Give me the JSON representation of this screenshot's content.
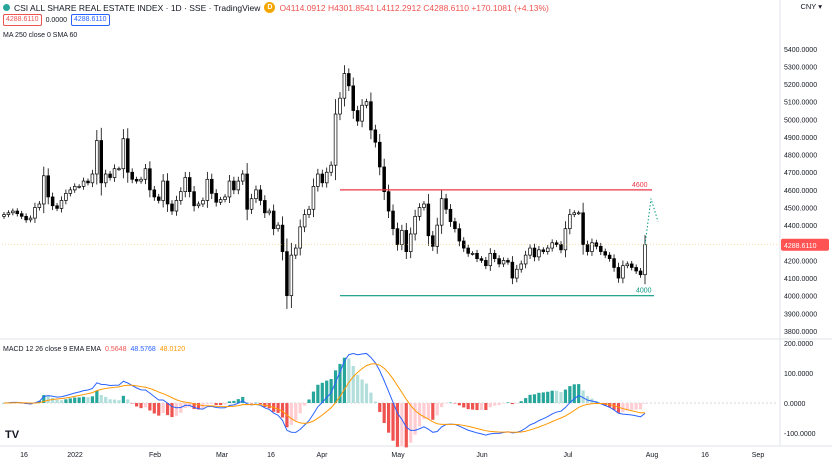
{
  "header": {
    "title": "CSI ALL SHARE REAL ESTATE INDEX · 1D · SSE · TradingView",
    "ohlc": "O4114.0912 H4301.8541 L4112.2912 C4288.6110 +170.1081 (+4.13%)",
    "bid": "4288.6110",
    "spread": "0.0000",
    "ask": "4288.6110",
    "indicator": "MA 250 close 0 SMA 60",
    "currency": "CNY",
    "macd_label": "MACD 12 26 close 9 EMA EMA",
    "macd_v1": "0.5648",
    "macd_v2": "48.5768",
    "macd_v3": "48.0120"
  },
  "colors": {
    "up": "#26a69a",
    "down": "#ef5350",
    "candle": "#000000",
    "macd": "#2962ff",
    "signal": "#ff9800",
    "resist": "#f23645",
    "support": "#089981",
    "last": "#ff5252"
  },
  "chart_data": [
    {
      "type": "candlestick",
      "title": "CSI ALL SHARE REAL ESTATE INDEX",
      "y_axis_ticks": [
        5400,
        5300,
        5200,
        5100,
        5000,
        4900,
        4800,
        4700,
        4600,
        4500,
        4400,
        4300,
        4200,
        4100,
        4000,
        3900,
        3800
      ],
      "ylim": [
        3760,
        5450
      ],
      "x_tick_labels": [
        "16",
        "2022",
        "Feb",
        "Mar",
        "16",
        "Apr",
        "May",
        "Jun",
        "Jul",
        "Aug",
        "16",
        "Sep"
      ],
      "close": [
        4460,
        4470,
        4480,
        4465,
        4450,
        4430,
        4440,
        4500,
        4520,
        4680,
        4560,
        4510,
        4495,
        4540,
        4580,
        4600,
        4620,
        4620,
        4650,
        4640,
        4690,
        4880,
        4640,
        4690,
        4670,
        4720,
        4720,
        4890,
        4700,
        4660,
        4650,
        4660,
        4720,
        4600,
        4560,
        4540,
        4650,
        4520,
        4480,
        4540,
        4590,
        4670,
        4590,
        4510,
        4520,
        4540,
        4660,
        4580,
        4530,
        4545,
        4560,
        4650,
        4600,
        4650,
        4690,
        4490,
        4550,
        4600,
        4540,
        4470,
        4480,
        4380,
        4400,
        4250,
        4000,
        4230,
        4270,
        4390,
        4460,
        4490,
        4620,
        4690,
        4640,
        4700,
        4740,
        5030,
        5120,
        5260,
        5190,
        5050,
        4990,
        5080,
        5100,
        4940,
        4870,
        4730,
        4590,
        4480,
        4380,
        4290,
        4370,
        4250,
        4350,
        4450,
        4500,
        4520,
        4340,
        4280,
        4400,
        4550,
        4490,
        4420,
        4380,
        4310,
        4270,
        4240,
        4240,
        4210,
        4200,
        4170,
        4240,
        4210,
        4180,
        4200,
        4190,
        4100,
        4150,
        4180,
        4230,
        4270,
        4220,
        4260,
        4250,
        4270,
        4300,
        4290,
        4260,
        4380,
        4460,
        4470,
        4470,
        4290,
        4250,
        4300,
        4280,
        4250,
        4230,
        4210,
        4160,
        4100,
        4170,
        4180,
        4160,
        4140,
        4119,
        4289
      ],
      "levels": [
        {
          "label": "4600",
          "value": 4600
        },
        {
          "label": "4000",
          "value": 4000
        }
      ],
      "last_price_label": "4288.6110",
      "last_price": 4288.611,
      "projection": [
        4288.6,
        4550,
        4420
      ]
    },
    {
      "type": "bar",
      "title": "MACD 12 26 close 9 EMA EMA",
      "y_axis_ticks": [
        200,
        100,
        0,
        -100
      ],
      "ylim": [
        -140,
        210
      ],
      "tick_labels": [
        "200.0000",
        "100.0000",
        "0.0000",
        "-100.0000"
      ]
    }
  ]
}
